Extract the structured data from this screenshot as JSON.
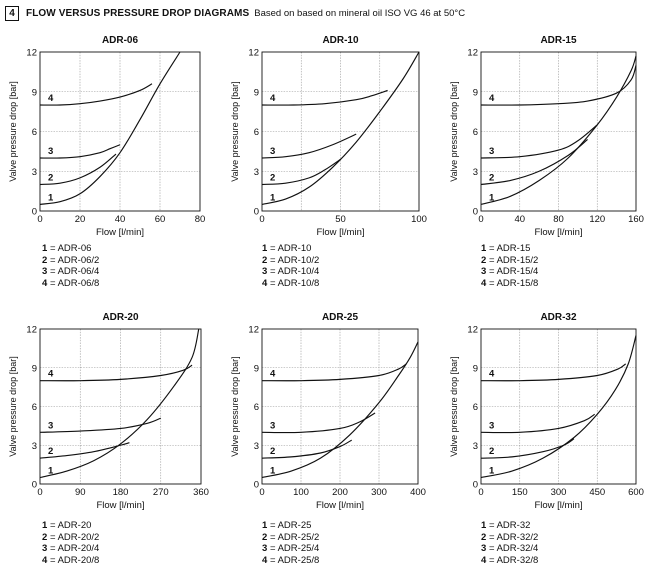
{
  "header": {
    "section_number": "4",
    "title": "FLOW VERSUS PRESSURE DROP DIAGRAMS",
    "subtitle": "Based on based on mineral oil ISO VG 46 at 50°C"
  },
  "chart_data": [
    {
      "type": "line",
      "title": "ADR-06",
      "xlabel": "Flow [l/min]",
      "ylabel": "Valve pressure drop [bar]",
      "xlim": [
        0,
        80
      ],
      "ylim": [
        0,
        12
      ],
      "xticks": [
        "0",
        "20",
        "40",
        "60",
        "80"
      ],
      "yticks": [
        "0",
        "3",
        "6",
        "9",
        "12"
      ],
      "grid": true,
      "series": [
        {
          "name": "1",
          "x": [
            0,
            10,
            20,
            30,
            40,
            50,
            60,
            70
          ],
          "y": [
            0.5,
            0.7,
            1.3,
            2.6,
            4.4,
            6.9,
            9.6,
            12.0
          ]
        },
        {
          "name": "2",
          "x": [
            0,
            10,
            20,
            30,
            38
          ],
          "y": [
            2.0,
            2.1,
            2.5,
            3.3,
            4.3
          ]
        },
        {
          "name": "3",
          "x": [
            0,
            10,
            20,
            30,
            35,
            40
          ],
          "y": [
            4.0,
            4.0,
            4.1,
            4.4,
            4.7,
            5.0
          ]
        },
        {
          "name": "4",
          "x": [
            0,
            10,
            20,
            30,
            40,
            50,
            56
          ],
          "y": [
            8.0,
            8.0,
            8.1,
            8.3,
            8.6,
            9.1,
            9.6
          ]
        }
      ],
      "legend": [
        {
          "num": "1",
          "label": "= ADR-06"
        },
        {
          "num": "2",
          "label": "= ADR-06/2"
        },
        {
          "num": "3",
          "label": "= ADR-06/4"
        },
        {
          "num": "4",
          "label": "= ADR-06/8"
        }
      ]
    },
    {
      "type": "line",
      "title": "ADR-10",
      "xlabel": "Flow [l/min]",
      "ylabel": "Valve pressure drop [bar]",
      "xlim": [
        0,
        100
      ],
      "ylim": [
        0,
        12
      ],
      "xticks": [
        "0",
        "",
        "50",
        "",
        "100"
      ],
      "yticks": [
        "0",
        "3",
        "6",
        "9",
        "12"
      ],
      "grid": true,
      "series": [
        {
          "name": "1",
          "x": [
            0,
            15,
            30,
            45,
            60,
            75,
            90,
            100
          ],
          "y": [
            0.5,
            0.9,
            1.8,
            3.3,
            5.2,
            7.5,
            10.0,
            12.0
          ]
        },
        {
          "name": "2",
          "x": [
            0,
            15,
            30,
            40,
            50
          ],
          "y": [
            2.0,
            2.1,
            2.5,
            3.1,
            3.9
          ]
        },
        {
          "name": "3",
          "x": [
            0,
            15,
            30,
            45,
            60
          ],
          "y": [
            4.0,
            4.1,
            4.4,
            5.0,
            5.8
          ]
        },
        {
          "name": "4",
          "x": [
            0,
            20,
            40,
            60,
            70,
            80
          ],
          "y": [
            8.0,
            8.0,
            8.1,
            8.4,
            8.7,
            9.1
          ]
        }
      ],
      "legend": [
        {
          "num": "1",
          "label": "= ADR-10"
        },
        {
          "num": "2",
          "label": "= ADR-10/2"
        },
        {
          "num": "3",
          "label": "= ADR-10/4"
        },
        {
          "num": "4",
          "label": "= ADR-10/8"
        }
      ]
    },
    {
      "type": "line",
      "title": "ADR-15",
      "xlabel": "Flow [l/min]",
      "ylabel": "Valve pressure drop [bar]",
      "xlim": [
        0,
        160
      ],
      "ylim": [
        0,
        12
      ],
      "xticks": [
        "0",
        "40",
        "80",
        "120",
        "160"
      ],
      "yticks": [
        "0",
        "3",
        "6",
        "9",
        "12"
      ],
      "grid": true,
      "series": [
        {
          "name": "1",
          "x": [
            0,
            30,
            60,
            90,
            120,
            140,
            155,
            160
          ],
          "y": [
            0.5,
            1.1,
            2.3,
            4.0,
            6.5,
            8.6,
            10.6,
            11.7
          ]
        },
        {
          "name": "2",
          "x": [
            0,
            30,
            60,
            90,
            110
          ],
          "y": [
            2.0,
            2.3,
            3.0,
            4.2,
            5.4
          ]
        },
        {
          "name": "3",
          "x": [
            0,
            40,
            80,
            100,
            120
          ],
          "y": [
            4.0,
            4.1,
            4.6,
            5.3,
            6.5
          ]
        },
        {
          "name": "4",
          "x": [
            0,
            40,
            80,
            110,
            140,
            155,
            160
          ],
          "y": [
            8.0,
            8.0,
            8.1,
            8.3,
            8.9,
            9.9,
            11.0
          ]
        }
      ],
      "legend": [
        {
          "num": "1",
          "label": "= ADR-15"
        },
        {
          "num": "2",
          "label": "= ADR-15/2"
        },
        {
          "num": "3",
          "label": "= ADR-15/4"
        },
        {
          "num": "4",
          "label": "= ADR-15/8"
        }
      ]
    },
    {
      "type": "line",
      "title": "ADR-20",
      "xlabel": "Flow [l/min]",
      "ylabel": "Valve pressure drop [bar]",
      "xlim": [
        0,
        360
      ],
      "ylim": [
        0,
        12
      ],
      "xticks": [
        "0",
        "90",
        "180",
        "270",
        "360"
      ],
      "yticks": [
        "0",
        "3",
        "6",
        "9",
        "12"
      ],
      "grid": true,
      "series": [
        {
          "name": "1",
          "x": [
            0,
            60,
            120,
            180,
            240,
            300,
            340,
            355
          ],
          "y": [
            0.5,
            1.0,
            1.8,
            3.1,
            5.0,
            7.6,
            9.8,
            12.0
          ]
        },
        {
          "name": "2",
          "x": [
            0,
            60,
            120,
            180,
            200
          ],
          "y": [
            2.0,
            2.2,
            2.5,
            3.0,
            3.2
          ]
        },
        {
          "name": "3",
          "x": [
            0,
            90,
            180,
            240,
            270
          ],
          "y": [
            4.0,
            4.1,
            4.3,
            4.7,
            5.1
          ]
        },
        {
          "name": "4",
          "x": [
            0,
            90,
            180,
            270,
            320,
            340
          ],
          "y": [
            8.0,
            8.0,
            8.1,
            8.4,
            8.8,
            9.2
          ]
        }
      ],
      "legend": [
        {
          "num": "1",
          "label": "= ADR-20"
        },
        {
          "num": "2",
          "label": "= ADR-20/2"
        },
        {
          "num": "3",
          "label": "= ADR-20/4"
        },
        {
          "num": "4",
          "label": "= ADR-20/8"
        }
      ]
    },
    {
      "type": "line",
      "title": "ADR-25",
      "xlabel": "Flow [l/min]",
      "ylabel": "Valve pressure drop [bar]",
      "xlim": [
        0,
        400
      ],
      "ylim": [
        0,
        12
      ],
      "xticks": [
        "0",
        "100",
        "200",
        "300",
        "400"
      ],
      "yticks": [
        "0",
        "3",
        "6",
        "9",
        "12"
      ],
      "grid": true,
      "series": [
        {
          "name": "1",
          "x": [
            0,
            75,
            150,
            225,
            300,
            350,
            380,
            400
          ],
          "y": [
            0.5,
            1.0,
            2.0,
            3.8,
            6.3,
            8.4,
            9.8,
            11.0
          ]
        },
        {
          "name": "2",
          "x": [
            0,
            75,
            150,
            200,
            230
          ],
          "y": [
            2.0,
            2.1,
            2.4,
            2.9,
            3.4
          ]
        },
        {
          "name": "3",
          "x": [
            0,
            100,
            200,
            250,
            290
          ],
          "y": [
            4.0,
            4.0,
            4.3,
            4.8,
            5.5
          ]
        },
        {
          "name": "4",
          "x": [
            0,
            100,
            200,
            300,
            350,
            370
          ],
          "y": [
            8.0,
            8.0,
            8.1,
            8.4,
            8.9,
            9.3
          ]
        }
      ],
      "legend": [
        {
          "num": "1",
          "label": "= ADR-25"
        },
        {
          "num": "2",
          "label": "= ADR-25/2"
        },
        {
          "num": "3",
          "label": "= ADR-25/4"
        },
        {
          "num": "4",
          "label": "= ADR-25/8"
        }
      ]
    },
    {
      "type": "line",
      "title": "ADR-32",
      "xlabel": "Flow [l/min]",
      "ylabel": "Valve pressure drop [bar]",
      "xlim": [
        0,
        600
      ],
      "ylim": [
        0,
        12
      ],
      "xticks": [
        "0",
        "150",
        "300",
        "450",
        "600"
      ],
      "yticks": [
        "0",
        "3",
        "6",
        "9",
        "12"
      ],
      "grid": true,
      "series": [
        {
          "name": "1",
          "x": [
            0,
            120,
            240,
            360,
            450,
            520,
            570,
            600
          ],
          "y": [
            0.5,
            1.0,
            2.0,
            3.6,
            5.4,
            7.3,
            9.3,
            11.5
          ]
        },
        {
          "name": "2",
          "x": [
            0,
            120,
            240,
            320,
            360
          ],
          "y": [
            2.0,
            2.1,
            2.5,
            3.0,
            3.5
          ]
        },
        {
          "name": "3",
          "x": [
            0,
            150,
            300,
            400,
            440
          ],
          "y": [
            4.0,
            4.0,
            4.3,
            4.9,
            5.4
          ]
        },
        {
          "name": "4",
          "x": [
            0,
            150,
            300,
            450,
            530,
            560
          ],
          "y": [
            8.0,
            8.0,
            8.1,
            8.4,
            8.9,
            9.3
          ]
        }
      ],
      "legend": [
        {
          "num": "1",
          "label": "= ADR-32"
        },
        {
          "num": "2",
          "label": "= ADR-32/2"
        },
        {
          "num": "3",
          "label": "= ADR-32/4"
        },
        {
          "num": "4",
          "label": "= ADR-32/8"
        }
      ]
    }
  ]
}
